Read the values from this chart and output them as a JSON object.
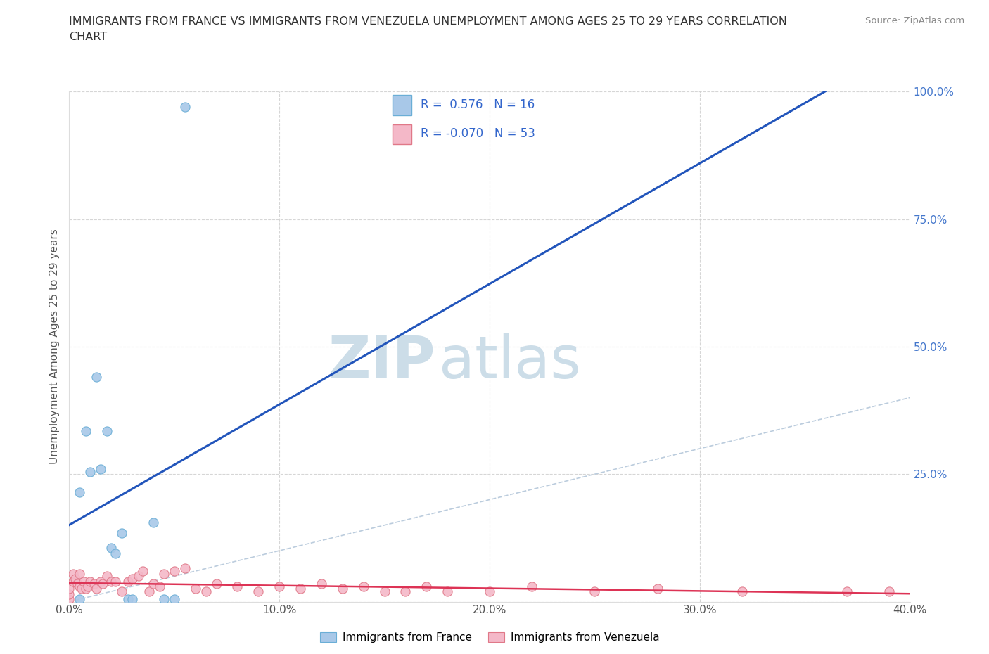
{
  "title_line1": "IMMIGRANTS FROM FRANCE VS IMMIGRANTS FROM VENEZUELA UNEMPLOYMENT AMONG AGES 25 TO 29 YEARS CORRELATION",
  "title_line2": "CHART",
  "source": "Source: ZipAtlas.com",
  "ylabel": "Unemployment Among Ages 25 to 29 years",
  "xlim": [
    0.0,
    0.4
  ],
  "ylim": [
    0.0,
    1.0
  ],
  "xticks": [
    0.0,
    0.1,
    0.2,
    0.3,
    0.4
  ],
  "xtick_labels": [
    "0.0%",
    "10.0%",
    "20.0%",
    "30.0%",
    "40.0%"
  ],
  "yticks": [
    0.0,
    0.25,
    0.5,
    0.75,
    1.0
  ],
  "ytick_labels": [
    "",
    "25.0%",
    "50.0%",
    "75.0%",
    "100.0%"
  ],
  "france_color": "#a8c8e8",
  "france_edge": "#6aaed6",
  "venezuela_color": "#f4b8c8",
  "venezuela_edge": "#e07888",
  "france_R": 0.576,
  "france_N": 16,
  "venezuela_R": -0.07,
  "venezuela_N": 53,
  "france_line_color": "#2255bb",
  "venezuela_line_color": "#dd3355",
  "diag_color": "#bbccdd",
  "watermark_zip": "ZIP",
  "watermark_atlas": "atlas",
  "watermark_color": "#ccdde8",
  "france_x": [
    0.005,
    0.005,
    0.008,
    0.01,
    0.013,
    0.015,
    0.018,
    0.02,
    0.022,
    0.025,
    0.028,
    0.03,
    0.04,
    0.045,
    0.05,
    0.055
  ],
  "france_y": [
    0.005,
    0.215,
    0.335,
    0.255,
    0.44,
    0.26,
    0.335,
    0.105,
    0.095,
    0.135,
    0.005,
    0.005,
    0.155,
    0.005,
    0.005,
    0.97
  ],
  "venezuela_x": [
    0.0,
    0.0,
    0.0,
    0.002,
    0.002,
    0.003,
    0.004,
    0.005,
    0.005,
    0.006,
    0.007,
    0.008,
    0.009,
    0.01,
    0.012,
    0.013,
    0.015,
    0.016,
    0.018,
    0.02,
    0.022,
    0.025,
    0.028,
    0.03,
    0.033,
    0.035,
    0.038,
    0.04,
    0.043,
    0.045,
    0.05,
    0.055,
    0.06,
    0.065,
    0.07,
    0.08,
    0.09,
    0.1,
    0.11,
    0.12,
    0.13,
    0.14,
    0.15,
    0.16,
    0.17,
    0.18,
    0.2,
    0.22,
    0.25,
    0.28,
    0.32,
    0.37,
    0.39
  ],
  "venezuela_y": [
    0.005,
    0.015,
    0.025,
    0.04,
    0.055,
    0.045,
    0.035,
    0.03,
    0.055,
    0.025,
    0.04,
    0.025,
    0.03,
    0.04,
    0.035,
    0.025,
    0.04,
    0.035,
    0.05,
    0.04,
    0.04,
    0.02,
    0.04,
    0.045,
    0.05,
    0.06,
    0.02,
    0.035,
    0.03,
    0.055,
    0.06,
    0.065,
    0.025,
    0.02,
    0.035,
    0.03,
    0.02,
    0.03,
    0.025,
    0.035,
    0.025,
    0.03,
    0.02,
    0.02,
    0.03,
    0.02,
    0.02,
    0.03,
    0.02,
    0.025,
    0.02,
    0.02,
    0.02
  ]
}
